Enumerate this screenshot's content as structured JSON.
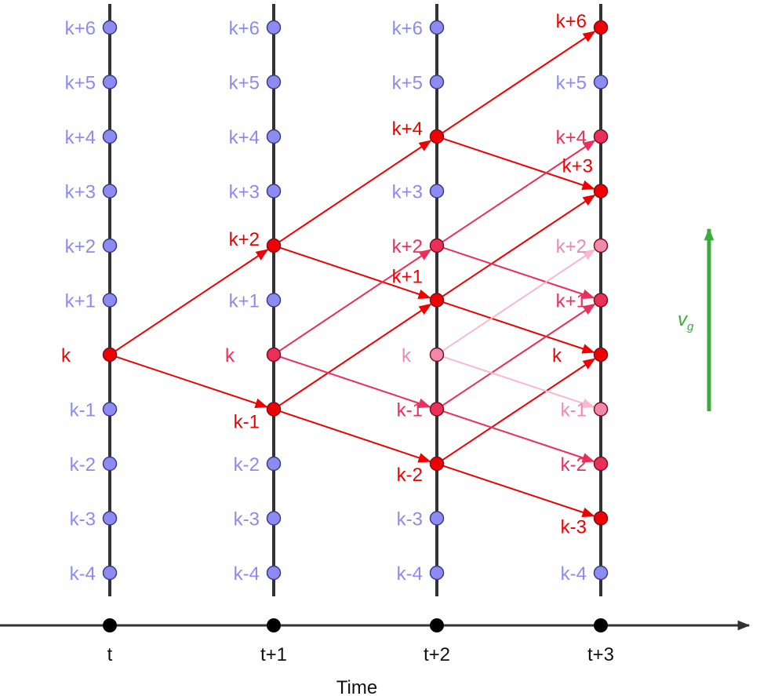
{
  "diagram": {
    "axis_label": "Time",
    "time_labels": [
      "t",
      "t+1",
      "t+2",
      "t+3"
    ],
    "state_labels": [
      "k+6",
      "k+5",
      "k+4",
      "k+3",
      "k+2",
      "k+1",
      "k",
      "k-1",
      "k-2",
      "k-3",
      "k-4"
    ],
    "velocity_label": "v",
    "velocity_subscript": "g",
    "colors": {
      "inactive": "#8c8cf0",
      "active_full": "#f00000",
      "active_mid": "#e8305a",
      "active_light": "#f08aab",
      "active_faint": "#f6b9cf",
      "axis": "#333333",
      "velocity": "#3bab3b"
    },
    "nodes": [
      {
        "time": 0,
        "state": "k+6",
        "status": "inactive"
      },
      {
        "time": 0,
        "state": "k+5",
        "status": "inactive"
      },
      {
        "time": 0,
        "state": "k+4",
        "status": "inactive"
      },
      {
        "time": 0,
        "state": "k+3",
        "status": "inactive"
      },
      {
        "time": 0,
        "state": "k+2",
        "status": "inactive"
      },
      {
        "time": 0,
        "state": "k+1",
        "status": "inactive"
      },
      {
        "time": 0,
        "state": "k",
        "status": "active_full"
      },
      {
        "time": 0,
        "state": "k-1",
        "status": "inactive"
      },
      {
        "time": 0,
        "state": "k-2",
        "status": "inactive"
      },
      {
        "time": 0,
        "state": "k-3",
        "status": "inactive"
      },
      {
        "time": 0,
        "state": "k-4",
        "status": "inactive"
      },
      {
        "time": 1,
        "state": "k+6",
        "status": "inactive"
      },
      {
        "time": 1,
        "state": "k+5",
        "status": "inactive"
      },
      {
        "time": 1,
        "state": "k+4",
        "status": "inactive"
      },
      {
        "time": 1,
        "state": "k+3",
        "status": "inactive"
      },
      {
        "time": 1,
        "state": "k+2",
        "status": "active_full"
      },
      {
        "time": 1,
        "state": "k+1",
        "status": "inactive"
      },
      {
        "time": 1,
        "state": "k",
        "status": "active_mid"
      },
      {
        "time": 1,
        "state": "k-1",
        "status": "active_full"
      },
      {
        "time": 1,
        "state": "k-2",
        "status": "inactive"
      },
      {
        "time": 1,
        "state": "k-3",
        "status": "inactive"
      },
      {
        "time": 1,
        "state": "k-4",
        "status": "inactive"
      },
      {
        "time": 2,
        "state": "k+6",
        "status": "inactive"
      },
      {
        "time": 2,
        "state": "k+5",
        "status": "inactive"
      },
      {
        "time": 2,
        "state": "k+4",
        "status": "active_full"
      },
      {
        "time": 2,
        "state": "k+3",
        "status": "inactive"
      },
      {
        "time": 2,
        "state": "k+2",
        "status": "active_mid"
      },
      {
        "time": 2,
        "state": "k+1",
        "status": "active_full"
      },
      {
        "time": 2,
        "state": "k",
        "status": "active_light"
      },
      {
        "time": 2,
        "state": "k-1",
        "status": "active_mid"
      },
      {
        "time": 2,
        "state": "k-2",
        "status": "active_full"
      },
      {
        "time": 2,
        "state": "k-3",
        "status": "inactive"
      },
      {
        "time": 2,
        "state": "k-4",
        "status": "inactive"
      },
      {
        "time": 3,
        "state": "k+6",
        "status": "active_full"
      },
      {
        "time": 3,
        "state": "k+5",
        "status": "inactive"
      },
      {
        "time": 3,
        "state": "k+4",
        "status": "active_mid"
      },
      {
        "time": 3,
        "state": "k+3",
        "status": "active_full"
      },
      {
        "time": 3,
        "state": "k+2",
        "status": "active_light"
      },
      {
        "time": 3,
        "state": "k+1",
        "status": "active_mid"
      },
      {
        "time": 3,
        "state": "k",
        "status": "active_full"
      },
      {
        "time": 3,
        "state": "k-1",
        "status": "active_light"
      },
      {
        "time": 3,
        "state": "k-2",
        "status": "active_mid"
      },
      {
        "time": 3,
        "state": "k-3",
        "status": "active_full"
      },
      {
        "time": 3,
        "state": "k-4",
        "status": "inactive"
      }
    ],
    "transitions": [
      {
        "from": [
          0,
          "k"
        ],
        "to": [
          1,
          "k+2"
        ],
        "status": "active_full"
      },
      {
        "from": [
          0,
          "k"
        ],
        "to": [
          1,
          "k-1"
        ],
        "status": "active_full"
      },
      {
        "from": [
          1,
          "k+2"
        ],
        "to": [
          2,
          "k+4"
        ],
        "status": "active_full"
      },
      {
        "from": [
          1,
          "k+2"
        ],
        "to": [
          2,
          "k+1"
        ],
        "status": "active_full"
      },
      {
        "from": [
          1,
          "k-1"
        ],
        "to": [
          2,
          "k+1"
        ],
        "status": "active_full"
      },
      {
        "from": [
          1,
          "k-1"
        ],
        "to": [
          2,
          "k-2"
        ],
        "status": "active_full"
      },
      {
        "from": [
          1,
          "k"
        ],
        "to": [
          2,
          "k+2"
        ],
        "status": "active_mid"
      },
      {
        "from": [
          1,
          "k"
        ],
        "to": [
          2,
          "k-1"
        ],
        "status": "active_mid"
      },
      {
        "from": [
          2,
          "k+4"
        ],
        "to": [
          3,
          "k+6"
        ],
        "status": "active_full"
      },
      {
        "from": [
          2,
          "k+4"
        ],
        "to": [
          3,
          "k+3"
        ],
        "status": "active_full"
      },
      {
        "from": [
          2,
          "k+1"
        ],
        "to": [
          3,
          "k+3"
        ],
        "status": "active_full"
      },
      {
        "from": [
          2,
          "k+1"
        ],
        "to": [
          3,
          "k"
        ],
        "status": "active_full"
      },
      {
        "from": [
          2,
          "k-2"
        ],
        "to": [
          3,
          "k"
        ],
        "status": "active_full"
      },
      {
        "from": [
          2,
          "k-2"
        ],
        "to": [
          3,
          "k-3"
        ],
        "status": "active_full"
      },
      {
        "from": [
          2,
          "k+2"
        ],
        "to": [
          3,
          "k+4"
        ],
        "status": "active_mid"
      },
      {
        "from": [
          2,
          "k+2"
        ],
        "to": [
          3,
          "k+1"
        ],
        "status": "active_mid"
      },
      {
        "from": [
          2,
          "k-1"
        ],
        "to": [
          3,
          "k+1"
        ],
        "status": "active_mid"
      },
      {
        "from": [
          2,
          "k-1"
        ],
        "to": [
          3,
          "k-2"
        ],
        "status": "active_mid"
      },
      {
        "from": [
          2,
          "k"
        ],
        "to": [
          3,
          "k+2"
        ],
        "status": "active_faint"
      },
      {
        "from": [
          2,
          "k"
        ],
        "to": [
          3,
          "k-1"
        ],
        "status": "active_faint"
      }
    ]
  }
}
